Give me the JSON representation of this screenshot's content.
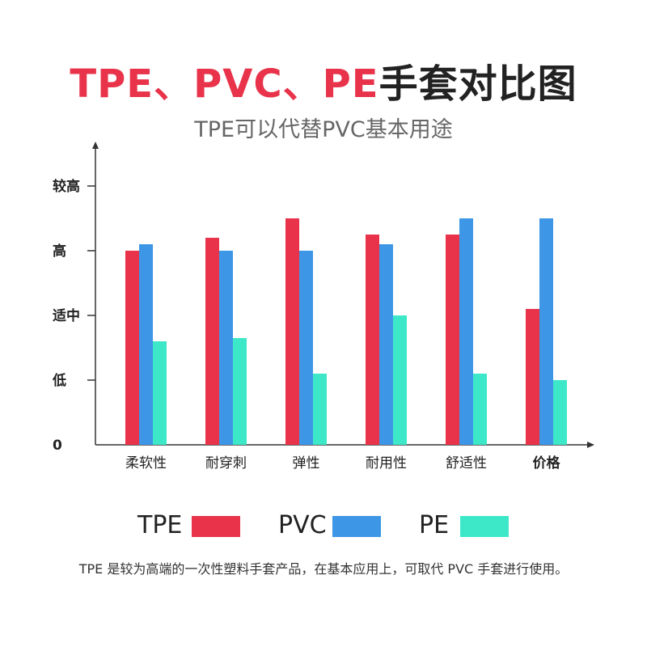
{
  "header": {
    "title_red": "TPE、PVC、PE",
    "title_dark": "手套对比图",
    "subtitle": "TPE可以代替PVC基本用途"
  },
  "colors": {
    "TPE": "#e8334a",
    "PVC": "#3d97e6",
    "PE": "#3de8c8"
  },
  "chart_data": {
    "type": "bar",
    "categories": [
      "柔软性",
      "耐穿刺",
      "弹性",
      "耐用性",
      "舒适性",
      "价格"
    ],
    "bold_categories": [
      "价格"
    ],
    "series": [
      {
        "name": "TPE",
        "values": [
          3.0,
          3.2,
          3.5,
          3.25,
          3.25,
          2.1
        ]
      },
      {
        "name": "PVC",
        "values": [
          3.1,
          3.0,
          3.0,
          3.1,
          3.5,
          3.5
        ]
      },
      {
        "name": "PE",
        "values": [
          1.6,
          1.65,
          1.1,
          2.0,
          1.1,
          1.0
        ]
      }
    ],
    "y_tick_values": [
      0,
      1,
      2,
      3,
      4
    ],
    "y_tick_labels": [
      "0",
      "低",
      "适中",
      "高",
      "较高"
    ],
    "ylim": [
      0,
      4.6
    ],
    "grid": false,
    "legend_position": "bottom"
  },
  "legend": {
    "items": [
      "TPE",
      "PVC",
      "PE"
    ]
  },
  "footnote": "TPE 是较为高端的一次性塑料手套产品，在基本应用上，可取代 PVC 手套进行使用。"
}
